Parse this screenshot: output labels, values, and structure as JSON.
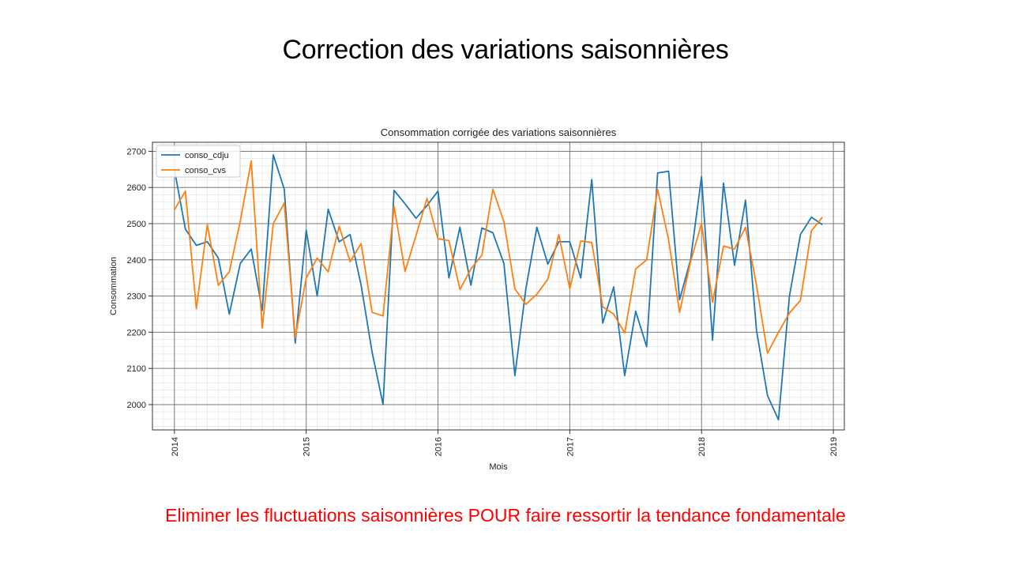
{
  "slide": {
    "title": "Correction des variations saisonnières",
    "footer": "Eliminer les fluctuations saisonnières POUR faire ressortir la tendance fondamentale",
    "footer_color": "#ff0000"
  },
  "chart_data": {
    "type": "line",
    "title": "Consommation corrigée des variations saisonnières",
    "xlabel": "Mois",
    "ylabel": "Consommation",
    "x_ticks": [
      "2014",
      "2015",
      "2016",
      "2017",
      "2018",
      "2019"
    ],
    "y_ticks": [
      2000,
      2100,
      2200,
      2300,
      2400,
      2500,
      2600,
      2700
    ],
    "xlim": [
      "2013-11",
      "2019-02"
    ],
    "ylim": [
      1930,
      2725
    ],
    "grid": true,
    "legend_position": "top-left",
    "x": [
      "2014-01",
      "2014-02",
      "2014-03",
      "2014-04",
      "2014-05",
      "2014-06",
      "2014-07",
      "2014-08",
      "2014-09",
      "2014-10",
      "2014-11",
      "2014-12",
      "2015-01",
      "2015-02",
      "2015-03",
      "2015-04",
      "2015-05",
      "2015-06",
      "2015-07",
      "2015-08",
      "2015-09",
      "2015-10",
      "2015-11",
      "2015-12",
      "2016-01",
      "2016-02",
      "2016-03",
      "2016-04",
      "2016-05",
      "2016-06",
      "2016-07",
      "2016-08",
      "2016-09",
      "2016-10",
      "2016-11",
      "2016-12",
      "2017-01",
      "2017-02",
      "2017-03",
      "2017-04",
      "2017-05",
      "2017-06",
      "2017-07",
      "2017-08",
      "2017-09",
      "2017-10",
      "2017-11",
      "2017-12",
      "2018-01",
      "2018-02",
      "2018-03",
      "2018-04",
      "2018-05",
      "2018-06",
      "2018-07",
      "2018-08",
      "2018-09",
      "2018-10",
      "2018-11",
      "2018-12"
    ],
    "series": [
      {
        "name": "conso_cdju",
        "color": "#1f77b4",
        "values": [
          2650,
          2485,
          2440,
          2450,
          2405,
          2250,
          2390,
          2430,
          2260,
          2690,
          2595,
          2170,
          2482,
          2300,
          2540,
          2450,
          2470,
          2330,
          2145,
          2000,
          2592,
          2555,
          2515,
          2550,
          2590,
          2350,
          2490,
          2330,
          2488,
          2475,
          2390,
          2080,
          2320,
          2490,
          2388,
          2450,
          2450,
          2350,
          2622,
          2225,
          2325,
          2080,
          2258,
          2160,
          2640,
          2645,
          2290,
          2400,
          2630,
          2178,
          2612,
          2385,
          2565,
          2205,
          2025,
          1958,
          2300,
          2470,
          2518,
          2497
        ]
      },
      {
        "name": "conso_cvs",
        "color": "#ff7f0e",
        "values": [
          2538,
          2590,
          2265,
          2497,
          2330,
          2367,
          2507,
          2673,
          2212,
          2500,
          2557,
          2185,
          2350,
          2405,
          2367,
          2493,
          2395,
          2445,
          2255,
          2245,
          2548,
          2368,
          2467,
          2570,
          2458,
          2453,
          2318,
          2375,
          2413,
          2595,
          2505,
          2320,
          2277,
          2305,
          2347,
          2470,
          2320,
          2452,
          2448,
          2270,
          2250,
          2198,
          2375,
          2400,
          2595,
          2455,
          2255,
          2395,
          2500,
          2283,
          2438,
          2430,
          2490,
          2330,
          2142,
          2200,
          2253,
          2288,
          2480,
          2518
        ]
      }
    ]
  }
}
